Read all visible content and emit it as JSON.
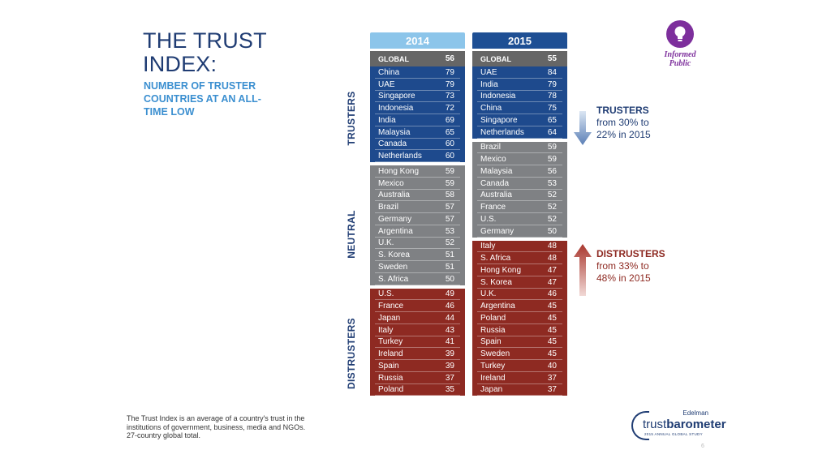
{
  "title": "THE TRUST INDEX:",
  "subtitle": "NUMBER OF TRUSTER COUNTRIES AT AN ALL-TIME LOW",
  "section_labels": {
    "trusters": "TRUSTERS",
    "neutral": "NEUTRAL",
    "distrusters": "DISTRUSTERS"
  },
  "colors": {
    "header_2014": "#8cc5ea",
    "header_2015": "#1e4f94",
    "global_row": "#666666",
    "trusters": "#1e4a8d",
    "neutral": "#7f8184",
    "distrusters": "#8e2a22",
    "trusters_text": "#1f3c73",
    "distrusters_text": "#8e2a22"
  },
  "columns": [
    {
      "year": "2014",
      "global": {
        "label": "GLOBAL",
        "value": "56"
      },
      "trusters": [
        {
          "country": "China",
          "value": "79"
        },
        {
          "country": "UAE",
          "value": "79"
        },
        {
          "country": "Singapore",
          "value": "73"
        },
        {
          "country": "Indonesia",
          "value": "72"
        },
        {
          "country": "India",
          "value": "69"
        },
        {
          "country": "Malaysia",
          "value": "65"
        },
        {
          "country": "Canada",
          "value": "60"
        },
        {
          "country": "Netherlands",
          "value": "60"
        }
      ],
      "neutral": [
        {
          "country": "Hong Kong",
          "value": "59"
        },
        {
          "country": "Mexico",
          "value": "59"
        },
        {
          "country": "Australia",
          "value": "58"
        },
        {
          "country": "Brazil",
          "value": "57"
        },
        {
          "country": "Germany",
          "value": "57"
        },
        {
          "country": "Argentina",
          "value": "53"
        },
        {
          "country": "U.K.",
          "value": "52"
        },
        {
          "country": "S. Korea",
          "value": "51"
        },
        {
          "country": "Sweden",
          "value": "51"
        },
        {
          "country": "S. Africa",
          "value": "50"
        }
      ],
      "distrusters": [
        {
          "country": "U.S.",
          "value": "49"
        },
        {
          "country": "France",
          "value": "46"
        },
        {
          "country": "Japan",
          "value": "44"
        },
        {
          "country": "Italy",
          "value": "43"
        },
        {
          "country": "Turkey",
          "value": "41"
        },
        {
          "country": "Ireland",
          "value": "39"
        },
        {
          "country": "Spain",
          "value": "39"
        },
        {
          "country": "Russia",
          "value": "37"
        },
        {
          "country": "Poland",
          "value": "35"
        }
      ]
    },
    {
      "year": "2015",
      "global": {
        "label": "GLOBAL",
        "value": "55"
      },
      "trusters": [
        {
          "country": "UAE",
          "value": "84"
        },
        {
          "country": "India",
          "value": "79"
        },
        {
          "country": "Indonesia",
          "value": "78"
        },
        {
          "country": "China",
          "value": "75"
        },
        {
          "country": "Singapore",
          "value": "65"
        },
        {
          "country": "Netherlands",
          "value": "64"
        }
      ],
      "neutral": [
        {
          "country": "Brazil",
          "value": "59"
        },
        {
          "country": "Mexico",
          "value": "59"
        },
        {
          "country": "Malaysia",
          "value": "56"
        },
        {
          "country": "Canada",
          "value": "53"
        },
        {
          "country": "Australia",
          "value": "52"
        },
        {
          "country": "France",
          "value": "52"
        },
        {
          "country": "U.S.",
          "value": "52"
        },
        {
          "country": "Germany",
          "value": "50"
        }
      ],
      "distrusters": [
        {
          "country": "Italy",
          "value": "48"
        },
        {
          "country": "S. Africa",
          "value": "48"
        },
        {
          "country": "Hong Kong",
          "value": "47"
        },
        {
          "country": "S. Korea",
          "value": "47"
        },
        {
          "country": "U.K.",
          "value": "46"
        },
        {
          "country": "Argentina",
          "value": "45"
        },
        {
          "country": "Poland",
          "value": "45"
        },
        {
          "country": "Russia",
          "value": "45"
        },
        {
          "country": "Spain",
          "value": "45"
        },
        {
          "country": "Sweden",
          "value": "45"
        },
        {
          "country": "Turkey",
          "value": "40"
        },
        {
          "country": "Ireland",
          "value": "37"
        },
        {
          "country": "Japan",
          "value": "37"
        }
      ]
    }
  ],
  "callouts": {
    "trusters": {
      "heading": "TRUSTERS",
      "line1": "from 30% to",
      "line2": "22% in 2015"
    },
    "distrusters": {
      "heading": "DISTRUSTERS",
      "line1": "from 33% to",
      "line2": "48% in 2015"
    }
  },
  "badge": {
    "label_line1": "Informed",
    "label_line2": "Public",
    "icon": "lightbulb-icon"
  },
  "footnote": {
    "line1": "The Trust Index is an average of a country's trust in the institutions of government, business, media and NGOs.",
    "line2": "27-country global total."
  },
  "logo": {
    "edelman": "Edelman",
    "trust": "trust",
    "barometer": "barometer",
    "tagline": "2015 ANNUAL GLOBAL STUDY"
  },
  "page_number": "6"
}
